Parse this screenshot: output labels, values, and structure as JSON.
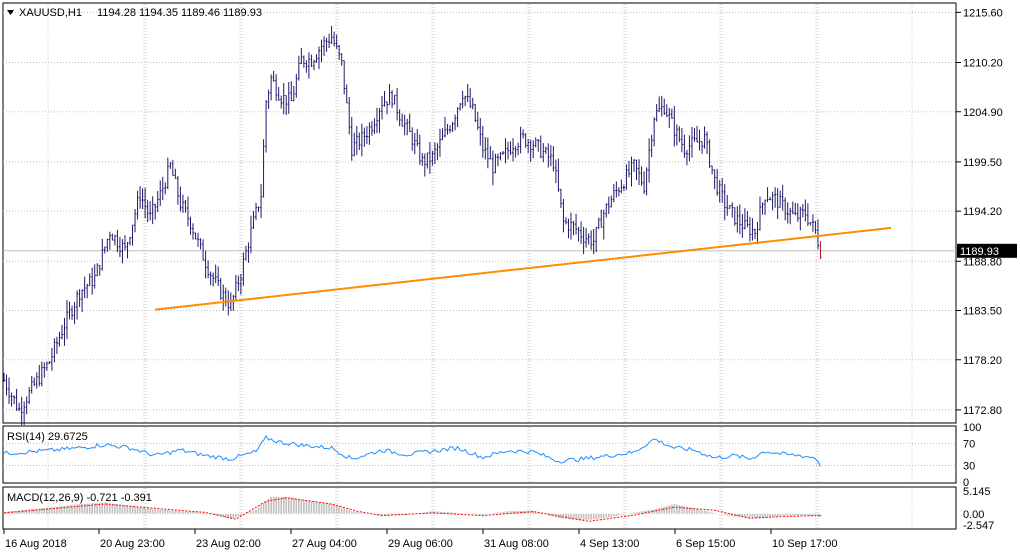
{
  "header": {
    "symbol_label": "XAUUSD,H1",
    "ohlc_text": "1194.28 1194.35 1189.46 1189.93"
  },
  "colors": {
    "background": "#ffffff",
    "grid": "#c0c0c0",
    "candle": "#1f1a6b",
    "candle_last": "#b31b1b",
    "trendline": "#ff8c00",
    "rsi_line": "#1e90ff",
    "macd_hist": "#c0c0c0",
    "macd_signal": "#ff0000",
    "price_tag_bg": "#000000",
    "price_tag_text": "#ffffff"
  },
  "chart_data": {
    "type": "candlestick",
    "price_axis_labels": [
      "1215.60",
      "1210.20",
      "1204.90",
      "1199.50",
      "1194.20",
      "1188.80",
      "1183.50",
      "1178.20",
      "1172.80"
    ],
    "ylim": [
      1171.5,
      1216.5
    ],
    "time_labels": [
      "16 Aug 2018",
      "20 Aug 23:00",
      "23 Aug 02:00",
      "27 Aug 04:00",
      "29 Aug 06:00",
      "31 Aug 08:00",
      "4 Sep 13:00",
      "6 Sep 15:00",
      "10 Sep 17:00"
    ],
    "current_price": 1189.93,
    "price_path": [
      [
        0,
        1176.0
      ],
      [
        6,
        1172.8
      ],
      [
        12,
        1175.5
      ],
      [
        18,
        1178.0
      ],
      [
        24,
        1182.0
      ],
      [
        30,
        1185.5
      ],
      [
        36,
        1187.0
      ],
      [
        42,
        1192.0
      ],
      [
        48,
        1190.0
      ],
      [
        54,
        1196.0
      ],
      [
        58,
        1193.5
      ],
      [
        62,
        1196.0
      ],
      [
        66,
        1199.0
      ],
      [
        70,
        1195.0
      ],
      [
        74,
        1193.0
      ],
      [
        78,
        1190.0
      ],
      [
        82,
        1187.5
      ],
      [
        86,
        1185.5
      ],
      [
        90,
        1184.0
      ],
      [
        94,
        1187.5
      ],
      [
        98,
        1192.0
      ],
      [
        102,
        1196.0
      ],
      [
        104,
        1206.0
      ],
      [
        106,
        1208.5
      ],
      [
        110,
        1206.5
      ],
      [
        114,
        1206.0
      ],
      [
        118,
        1210.5
      ],
      [
        122,
        1210.5
      ],
      [
        126,
        1212.0
      ],
      [
        130,
        1213.0
      ],
      [
        134,
        1210.0
      ],
      [
        138,
        1201.0
      ],
      [
        142,
        1202.0
      ],
      [
        146,
        1203.5
      ],
      [
        150,
        1206.0
      ],
      [
        154,
        1206.5
      ],
      [
        158,
        1204.0
      ],
      [
        162,
        1202.0
      ],
      [
        166,
        1199.5
      ],
      [
        170,
        1200.0
      ],
      [
        174,
        1202.0
      ],
      [
        178,
        1204.0
      ],
      [
        182,
        1207.0
      ],
      [
        186,
        1205.0
      ],
      [
        190,
        1201.0
      ],
      [
        194,
        1199.0
      ],
      [
        198,
        1200.0
      ],
      [
        202,
        1201.5
      ],
      [
        206,
        1202.0
      ],
      [
        210,
        1201.5
      ],
      [
        214,
        1200.5
      ],
      [
        218,
        1199.5
      ],
      [
        222,
        1193.0
      ],
      [
        226,
        1192.5
      ],
      [
        230,
        1191.5
      ],
      [
        234,
        1191.0
      ],
      [
        238,
        1194.0
      ],
      [
        242,
        1196.0
      ],
      [
        246,
        1197.5
      ],
      [
        250,
        1199.0
      ],
      [
        254,
        1197.0
      ],
      [
        258,
        1204.5
      ],
      [
        262,
        1205.5
      ],
      [
        266,
        1203.0
      ],
      [
        270,
        1201.0
      ],
      [
        274,
        1201.5
      ],
      [
        278,
        1202.0
      ],
      [
        282,
        1197.5
      ],
      [
        286,
        1195.0
      ],
      [
        290,
        1193.5
      ],
      [
        294,
        1192.5
      ],
      [
        298,
        1192.0
      ],
      [
        302,
        1196.0
      ],
      [
        306,
        1195.5
      ],
      [
        310,
        1194.5
      ],
      [
        314,
        1193.5
      ],
      [
        318,
        1194.0
      ],
      [
        322,
        1192.0
      ],
      [
        324,
        1190.0
      ]
    ],
    "trendlines": [
      {
        "start_bar": 60,
        "start_price": 1183.6,
        "end_bar": 352,
        "end_price": 1192.4
      }
    ],
    "panels": [
      {
        "name": "RSI",
        "label": "RSI(14) 29.6725",
        "axis_labels": [
          "100",
          "70",
          "30",
          "0"
        ],
        "ylim": [
          0,
          100
        ],
        "path": [
          [
            0,
            52
          ],
          [
            10,
            55
          ],
          [
            20,
            58
          ],
          [
            30,
            62
          ],
          [
            40,
            68
          ],
          [
            50,
            62
          ],
          [
            60,
            48
          ],
          [
            70,
            58
          ],
          [
            80,
            48
          ],
          [
            90,
            42
          ],
          [
            100,
            55
          ],
          [
            104,
            80
          ],
          [
            110,
            72
          ],
          [
            120,
            66
          ],
          [
            130,
            62
          ],
          [
            138,
            42
          ],
          [
            150,
            58
          ],
          [
            160,
            50
          ],
          [
            170,
            56
          ],
          [
            180,
            62
          ],
          [
            190,
            45
          ],
          [
            200,
            57
          ],
          [
            210,
            55
          ],
          [
            220,
            38
          ],
          [
            230,
            42
          ],
          [
            240,
            48
          ],
          [
            250,
            54
          ],
          [
            258,
            78
          ],
          [
            266,
            62
          ],
          [
            274,
            58
          ],
          [
            282,
            44
          ],
          [
            290,
            48
          ],
          [
            296,
            42
          ],
          [
            302,
            56
          ],
          [
            310,
            50
          ],
          [
            316,
            48
          ],
          [
            322,
            44
          ],
          [
            324,
            30
          ]
        ]
      },
      {
        "name": "MACD",
        "label": "MACD(12,26,9) -0.721 -0.391",
        "axis_labels": [
          "5.145",
          "0.00",
          "-2.547"
        ],
        "ylim": [
          -3.2,
          5.8
        ],
        "histogram": [
          [
            0,
            0.4
          ],
          [
            10,
            1.0
          ],
          [
            20,
            1.5
          ],
          [
            30,
            2.2
          ],
          [
            40,
            2.5
          ],
          [
            50,
            1.8
          ],
          [
            60,
            1.0
          ],
          [
            70,
            0.6
          ],
          [
            80,
            0.2
          ],
          [
            90,
            -1.2
          ],
          [
            100,
            1.0
          ],
          [
            106,
            3.8
          ],
          [
            112,
            3.8
          ],
          [
            120,
            3.0
          ],
          [
            130,
            2.2
          ],
          [
            138,
            0.6
          ],
          [
            150,
            -0.4
          ],
          [
            160,
            -0.3
          ],
          [
            170,
            0.6
          ],
          [
            180,
            0.2
          ],
          [
            190,
            -0.3
          ],
          [
            200,
            0.6
          ],
          [
            210,
            0.7
          ],
          [
            220,
            -1.0
          ],
          [
            230,
            -1.5
          ],
          [
            240,
            -0.8
          ],
          [
            250,
            0.3
          ],
          [
            258,
            1.0
          ],
          [
            266,
            2.2
          ],
          [
            274,
            1.2
          ],
          [
            282,
            0.2
          ],
          [
            290,
            -0.7
          ],
          [
            300,
            -1.0
          ],
          [
            310,
            -0.4
          ],
          [
            318,
            -0.4
          ],
          [
            324,
            -0.7
          ]
        ],
        "signal": [
          [
            0,
            0.2
          ],
          [
            20,
            1.2
          ],
          [
            40,
            2.2
          ],
          [
            60,
            1.2
          ],
          [
            80,
            0.3
          ],
          [
            92,
            -1.2
          ],
          [
            104,
            2.8
          ],
          [
            112,
            3.6
          ],
          [
            130,
            2.2
          ],
          [
            140,
            0.6
          ],
          [
            150,
            -0.4
          ],
          [
            170,
            0.2
          ],
          [
            190,
            -0.4
          ],
          [
            210,
            0.5
          ],
          [
            220,
            -0.5
          ],
          [
            232,
            -1.7
          ],
          [
            250,
            -0.3
          ],
          [
            266,
            1.5
          ],
          [
            282,
            0.8
          ],
          [
            296,
            -1.0
          ],
          [
            310,
            -0.6
          ],
          [
            324,
            -0.4
          ]
        ]
      }
    ]
  }
}
